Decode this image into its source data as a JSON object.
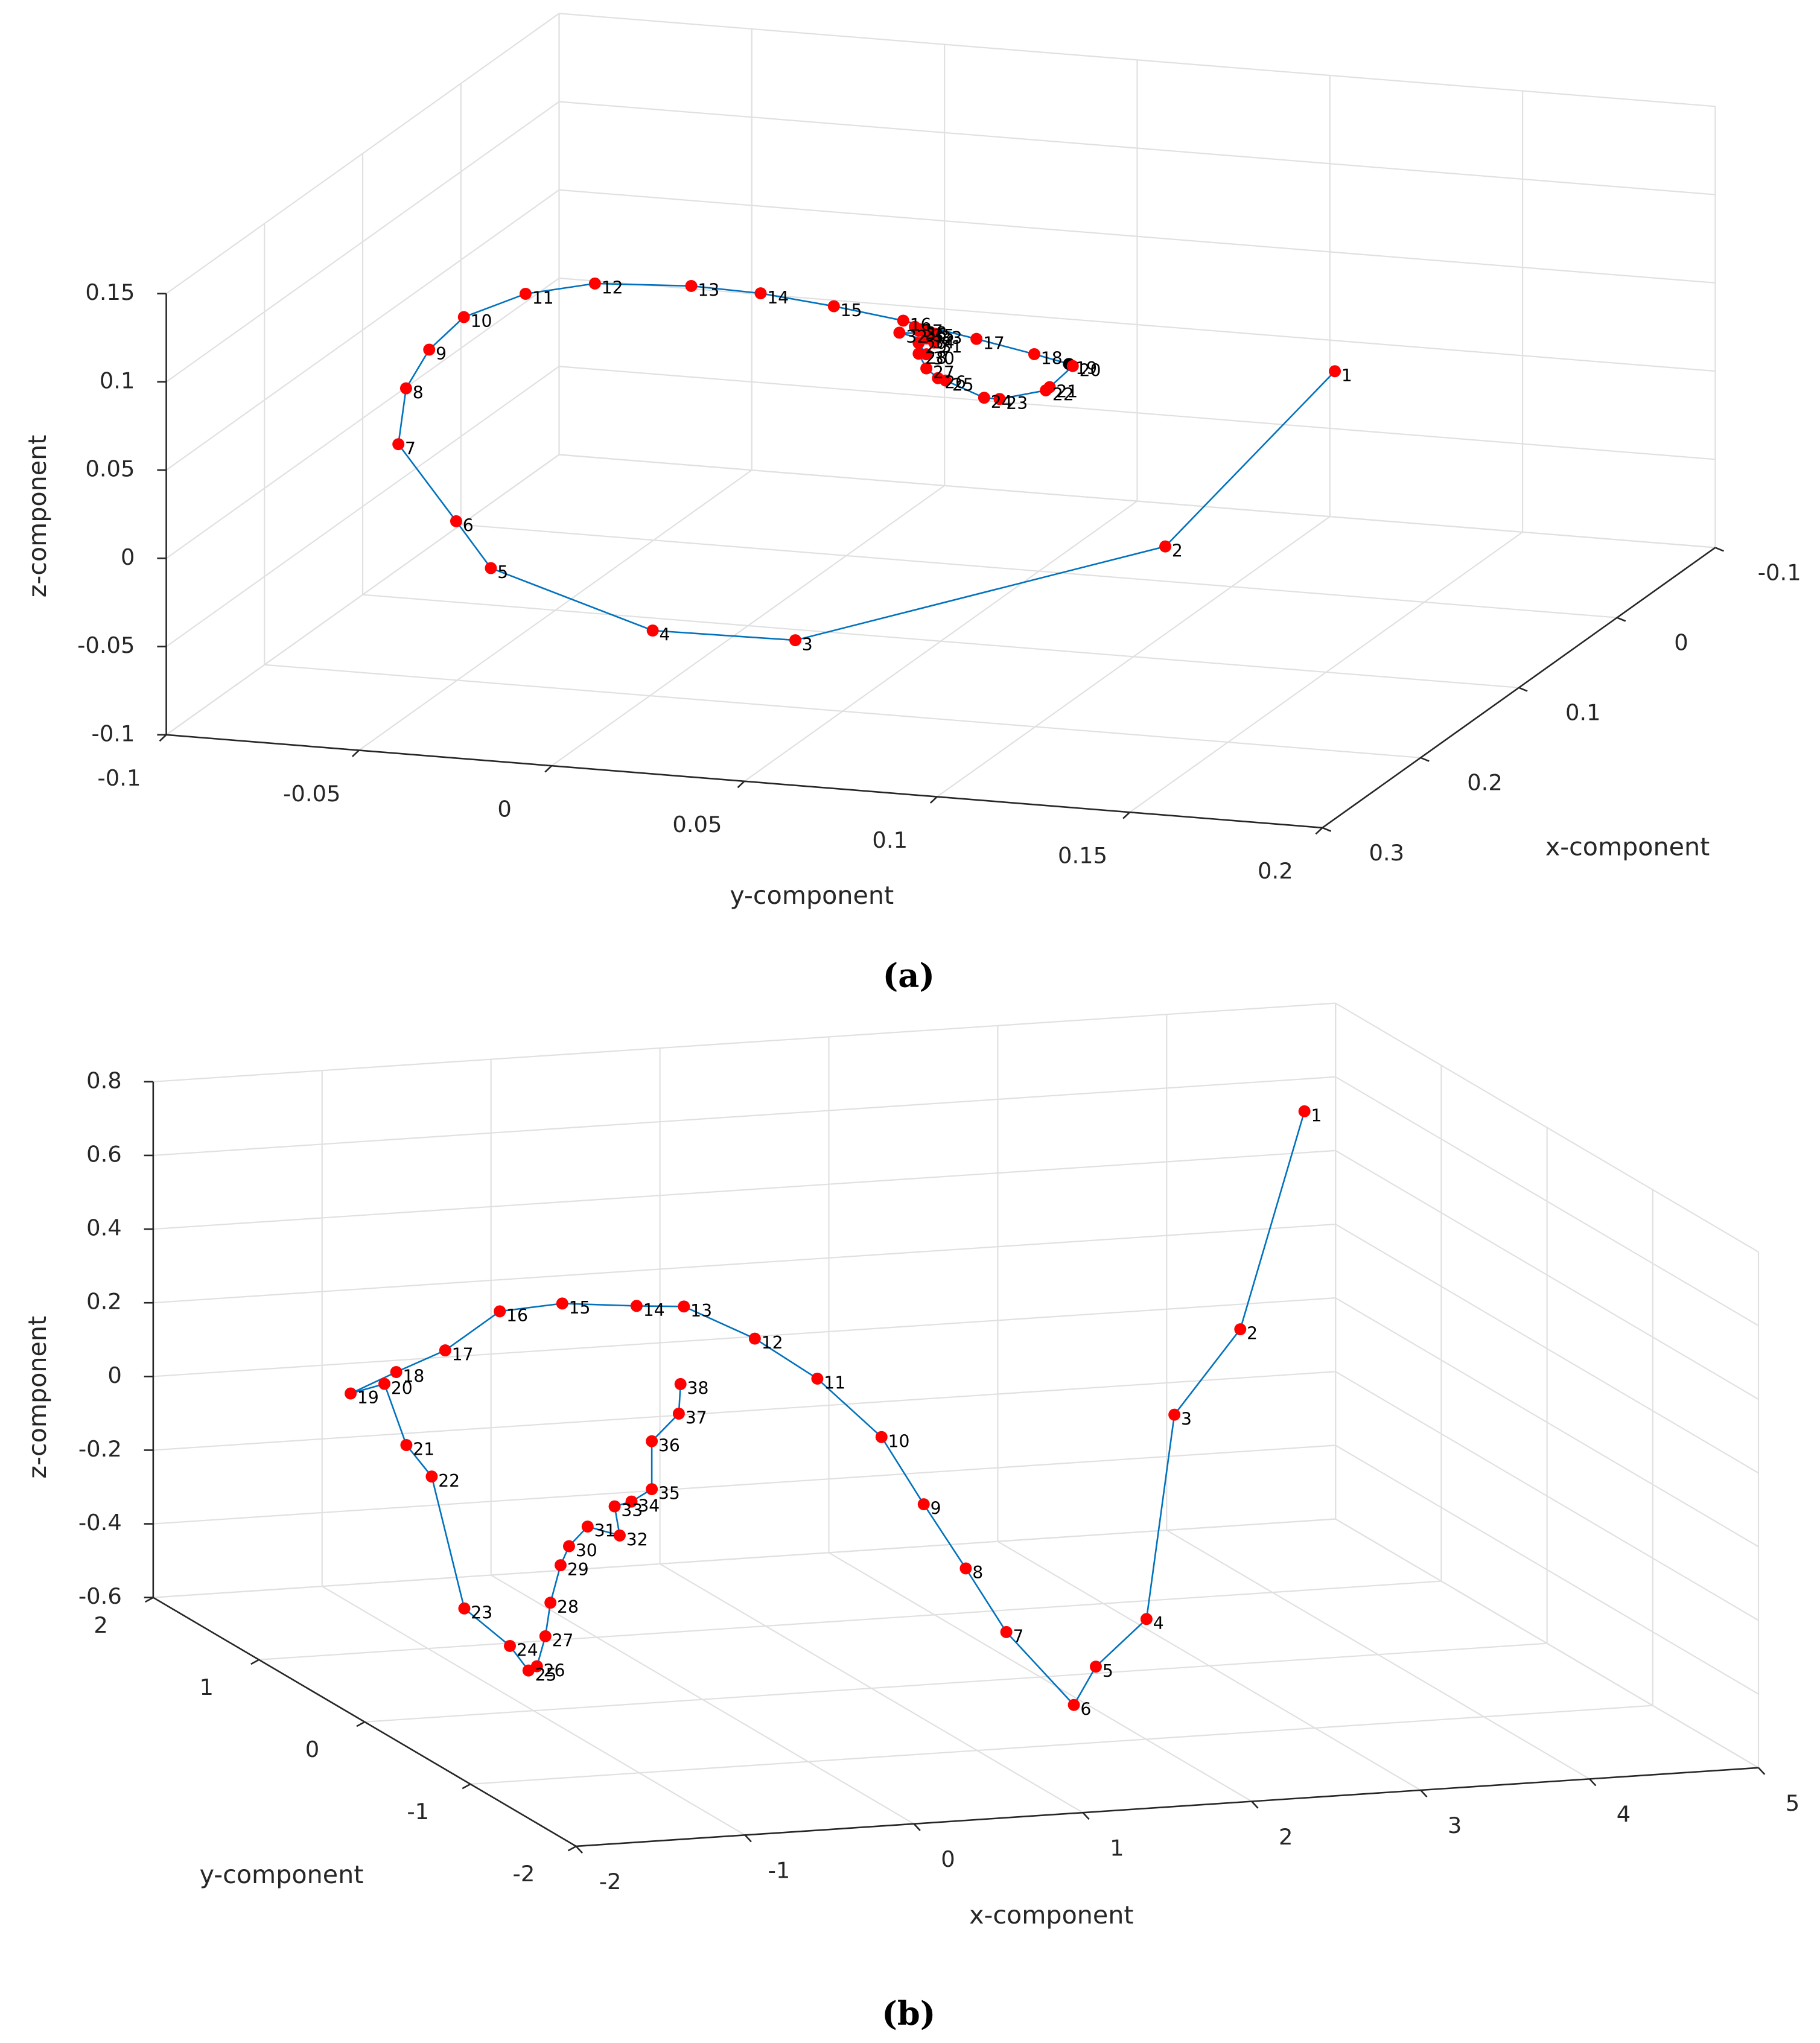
{
  "chart_data": [
    {
      "type": "line3d",
      "caption": "(a)",
      "xlabel": "x-component",
      "ylabel": "y-component",
      "zlabel": "z-component",
      "xlim": [
        -0.1,
        0.3
      ],
      "xticks": [
        -0.1,
        0,
        0.1,
        0.2,
        0.3
      ],
      "ylim": [
        -0.1,
        0.2
      ],
      "yticks": [
        -0.1,
        -0.05,
        0,
        0.05,
        0.1,
        0.15,
        0.2
      ],
      "zlim": [
        -0.1,
        0.15
      ],
      "zticks": [
        -0.1,
        -0.05,
        0,
        0.05,
        0.1,
        0.15
      ],
      "grid": true,
      "line_color": "#0072bd",
      "labels": [
        "1",
        "2",
        "3",
        "4",
        "5",
        "6",
        "7",
        "8",
        "9",
        "10",
        "11",
        "12",
        "13",
        "14",
        "15",
        "16",
        "17",
        "18",
        "19",
        "20",
        "21",
        "22",
        "23",
        "24",
        "25",
        "26",
        "27",
        "28",
        "29",
        "30",
        "31",
        "32",
        "33",
        "34",
        "35",
        "36",
        "37",
        "38"
      ],
      "x": [
        0.15,
        0.15,
        0.15,
        0.15,
        0.15,
        0.15,
        0.15,
        0.15,
        0.15,
        0.15,
        0.15,
        0.15,
        0.15,
        0.15,
        0.15,
        0.15,
        0.15,
        0.15,
        0.15,
        0.15,
        0.15,
        0.15,
        0.15,
        0.15,
        0.15,
        0.15,
        0.15,
        0.15,
        0.15,
        0.15,
        0.15,
        0.15,
        0.15,
        0.15,
        0.15,
        0.15,
        0.15,
        0.15
      ],
      "y": [
        0.165,
        0.121,
        0.025,
        -0.012,
        -0.054,
        -0.063,
        -0.078,
        -0.076,
        -0.07,
        -0.061,
        -0.045,
        -0.027,
        -0.002,
        0.016,
        0.035,
        0.053,
        0.072,
        0.087,
        0.096,
        0.097,
        0.091,
        0.09,
        0.078,
        0.074,
        0.064,
        0.062,
        0.059,
        0.057,
        0.057,
        0.059,
        0.061,
        0.052,
        0.061,
        0.059,
        0.059,
        0.057,
        0.056,
        0.057
      ],
      "z": [
        0.093,
        -0.014,
        -0.084,
        -0.085,
        -0.057,
        -0.032,
        0.009,
        0.041,
        0.064,
        0.084,
        0.1,
        0.109,
        0.112,
        0.111,
        0.107,
        0.102,
        0.095,
        0.089,
        0.085,
        0.084,
        0.071,
        0.069,
        0.062,
        0.062,
        0.07,
        0.071,
        0.076,
        0.084,
        0.09,
        0.084,
        0.091,
        0.095,
        0.096,
        0.093,
        0.097,
        0.097,
        0.099,
        0.098
      ],
      "marker_colors": [
        "#ff0000",
        "#ff0000",
        "#ff0000",
        "#ff0000",
        "#ff0000",
        "#ff0000",
        "#ff0000",
        "#ff0000",
        "#ff0000",
        "#ff0000",
        "#ff0000",
        "#ff0000",
        "#ff0000",
        "#ff0000",
        "#ff0000",
        "#ff0000",
        "#ff0000",
        "#ff0000",
        "#000000",
        "#ff0000",
        "#ff0000",
        "#ff0000",
        "#ff0000",
        "#ff0000",
        "#ff0000",
        "#ff0000",
        "#ff0000",
        "#ff0000",
        "#ff0000",
        "#ff0000",
        "#ff0000",
        "#ff0000",
        "#ff0000",
        "#ff0000",
        "#ff0000",
        "#ff0000",
        "#ff0000",
        "#ff0000"
      ]
    },
    {
      "type": "line3d",
      "caption": "(b)",
      "xlabel": "x-component",
      "ylabel": "y-component",
      "zlabel": "z-component",
      "xlim": [
        -2,
        5
      ],
      "xticks": [
        -2,
        -1,
        0,
        1,
        2,
        3,
        4,
        5
      ],
      "ylim": [
        -2,
        2
      ],
      "yticks": [
        -2,
        -1,
        0,
        1,
        2
      ],
      "zlim": [
        -0.6,
        0.8
      ],
      "zticks": [
        -0.6,
        -0.4,
        -0.2,
        0,
        0.2,
        0.4,
        0.6,
        0.8
      ],
      "grid": true,
      "line_color": "#0072bd",
      "marker_color": "#ff0000",
      "labels": [
        "1",
        "2",
        "3",
        "4",
        "5",
        "6",
        "7",
        "8",
        "9",
        "10",
        "11",
        "12",
        "13",
        "14",
        "15",
        "16",
        "17",
        "18",
        "19",
        "20",
        "21",
        "22",
        "23",
        "24",
        "25",
        "26",
        "27",
        "28",
        "29",
        "30",
        "31",
        "32",
        "33",
        "34",
        "35",
        "36",
        "37",
        "38"
      ],
      "x": [
        4.19,
        3.81,
        3.42,
        1.69,
        1.39,
        1.26,
        0.86,
        0.62,
        1.31,
        1.06,
        0.68,
        0.31,
        -0.11,
        -0.39,
        -0.83,
        -1.2,
        -1.21,
        -1.5,
        -1.77,
        -1.57,
        -1.44,
        -1.29,
        -1.41,
        -1.14,
        -1.03,
        -0.98,
        -0.93,
        -0.9,
        -0.84,
        -0.79,
        -0.68,
        -0.49,
        -0.52,
        -0.42,
        -0.3,
        -0.3,
        -0.14,
        -0.13
      ],
      "y": [
        1,
        1,
        1,
        -1.5,
        -1.5,
        -1.5,
        -1.5,
        -1.5,
        0,
        0,
        0,
        0,
        0,
        0,
        0,
        0,
        0.5,
        0.5,
        0.5,
        0.5,
        0.5,
        0.5,
        0,
        0,
        0,
        0,
        0,
        0,
        0,
        0,
        0,
        0,
        0,
        0,
        0,
        0,
        0,
        0
      ],
      "z": [
        0.7,
        0.12,
        -0.1,
        -0.18,
        -0.3,
        -0.4,
        -0.19,
        -0.01,
        -0.11,
        0.08,
        0.25,
        0.37,
        0.47,
        0.48,
        0.5,
        0.49,
        0.3,
        0.25,
        0.2,
        0.22,
        0.05,
        -0.04,
        -0.31,
        -0.42,
        -0.49,
        -0.48,
        -0.4,
        -0.31,
        -0.21,
        -0.16,
        -0.11,
        -0.14,
        -0.06,
        -0.05,
        -0.02,
        0.11,
        0.18,
        0.26
      ]
    }
  ]
}
